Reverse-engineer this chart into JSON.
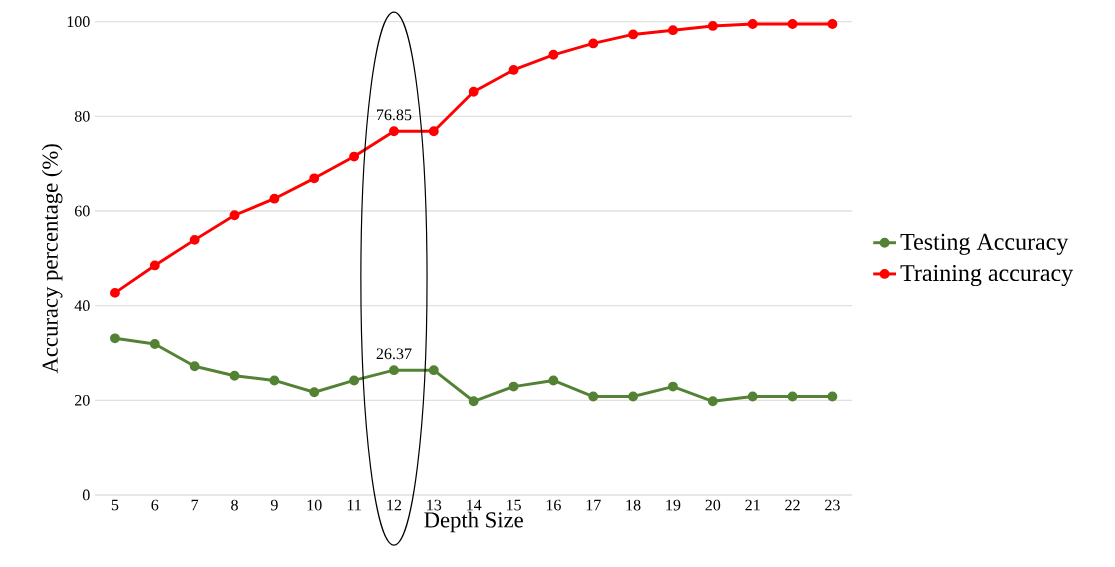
{
  "chart_data": {
    "type": "line",
    "xlabel": "Depth Size",
    "ylabel": "Accuracy percentage (%)",
    "categories": [
      "5",
      "6",
      "7",
      "8",
      "9",
      "10",
      "11",
      "12",
      "13",
      "14",
      "15",
      "16",
      "17",
      "18",
      "19",
      "20",
      "21",
      "22",
      "23"
    ],
    "series": [
      {
        "name": "Testing Accuracy",
        "color": "#548235",
        "values": [
          33.1,
          31.9,
          27.2,
          25.2,
          24.2,
          21.7,
          24.2,
          26.37,
          26.37,
          19.8,
          22.9,
          24.2,
          20.8,
          20.8,
          22.9,
          19.8,
          20.8,
          20.8,
          20.8
        ]
      },
      {
        "name": "Training accuracy",
        "color": "#ff0000",
        "values": [
          42.7,
          48.5,
          53.9,
          59.1,
          62.6,
          66.9,
          71.5,
          76.85,
          76.85,
          85.2,
          89.8,
          93.0,
          95.4,
          97.3,
          98.2,
          99.1,
          99.5,
          99.5,
          99.5
        ]
      }
    ],
    "ylim": [
      0,
      100
    ],
    "yticks": [
      0,
      20,
      40,
      60,
      80,
      100
    ],
    "grid": "y",
    "legend": "right",
    "marker": "circle",
    "line_style": "solid",
    "annotations": [
      {
        "text": "76.85",
        "x": "12",
        "y": 76.85
      },
      {
        "text": "26.37",
        "x": "12",
        "y": 26.37
      }
    ]
  }
}
